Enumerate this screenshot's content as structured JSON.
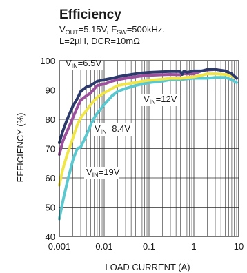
{
  "chart_data": {
    "type": "line",
    "title": "Efficiency",
    "subtitle_line1": {
      "v": "V",
      "v_sub": "OUT",
      "mid": "=5.15V, F",
      "f_sub": "SW",
      "end": "=500kHz."
    },
    "subtitle_line2": "L=2µH, DCR=10mΩ",
    "xlabel": "LOAD CURRENT (A)",
    "ylabel": "EFFICIENCY (%)",
    "xscale": "log",
    "xlim": [
      0.001,
      10
    ],
    "ylim": [
      40,
      100
    ],
    "xticks": [
      {
        "value": 0.001,
        "label": "0.001"
      },
      {
        "value": 0.01,
        "label": "0.01"
      },
      {
        "value": 0.1,
        "label": "0.1"
      },
      {
        "value": 1,
        "label": "1"
      },
      {
        "value": 10,
        "label": "10"
      }
    ],
    "yticks": [
      {
        "value": 40,
        "label": "40"
      },
      {
        "value": 50,
        "label": "50"
      },
      {
        "value": 60,
        "label": "60"
      },
      {
        "value": 70,
        "label": "70"
      },
      {
        "value": 80,
        "label": "80"
      },
      {
        "value": 90,
        "label": "90"
      },
      {
        "value": 100,
        "label": "100"
      }
    ],
    "grid": true,
    "series": [
      {
        "name": "VIN=6.5V",
        "label_main": "V",
        "label_sub": "IN",
        "label_end": "=6.5V",
        "color": "#2b3a6b",
        "x": [
          0.001,
          0.0012,
          0.0015,
          0.002,
          0.0025,
          0.003,
          0.004,
          0.005,
          0.007,
          0.01,
          0.015,
          0.02,
          0.03,
          0.05,
          0.07,
          0.1,
          0.2,
          0.3,
          0.5,
          0.55,
          0.6,
          0.7,
          1,
          1.5,
          2,
          3,
          5,
          7,
          9
        ],
        "y": [
          72,
          76,
          80,
          84.5,
          87,
          89.5,
          91,
          91.5,
          93,
          93.5,
          94,
          94.5,
          95,
          95.5,
          95.8,
          96,
          96.2,
          96.3,
          96.3,
          95.3,
          96.5,
          96,
          96.5,
          96.5,
          97,
          97,
          96.5,
          95.5,
          94
        ]
      },
      {
        "name": "VIN=8.4V",
        "label_main": "V",
        "label_sub": "IN",
        "label_end": "=8.4V",
        "color": "#9b4f9c",
        "x": [
          0.001,
          0.0012,
          0.0015,
          0.002,
          0.0025,
          0.003,
          0.004,
          0.005,
          0.007,
          0.01,
          0.015,
          0.02,
          0.03,
          0.05,
          0.07,
          0.1,
          0.2,
          0.3,
          0.5,
          0.6,
          0.7,
          1,
          1.5,
          2,
          3,
          5,
          7,
          9
        ],
        "y": [
          68,
          72.5,
          76,
          80.5,
          84,
          86.5,
          88,
          89,
          91.5,
          92,
          93,
          93.5,
          94,
          94.5,
          94.8,
          95,
          95.2,
          95.3,
          95.2,
          95.5,
          95.5,
          95.5,
          96.5,
          96.8,
          97,
          96.5,
          95.5,
          94
        ]
      },
      {
        "name": "VIN=12V",
        "label_main": "V",
        "label_sub": "IN",
        "label_end": "=12V",
        "color": "#f0e64a",
        "x": [
          0.001,
          0.0012,
          0.0015,
          0.002,
          0.0025,
          0.003,
          0.004,
          0.005,
          0.007,
          0.01,
          0.015,
          0.02,
          0.03,
          0.05,
          0.07,
          0.1,
          0.2,
          0.3,
          0.5,
          0.7,
          1,
          1.5,
          2,
          3,
          5,
          7,
          9
        ],
        "y": [
          57.5,
          63,
          68,
          73.5,
          78,
          80.5,
          83,
          85,
          87.5,
          89,
          90.5,
          91.5,
          92,
          92.5,
          93,
          93.3,
          93.7,
          94,
          94,
          94.3,
          94.5,
          95,
          95.5,
          95.5,
          95.3,
          94.8,
          94
        ]
      },
      {
        "name": "VIN=19V",
        "label_main": "V",
        "label_sub": "IN",
        "label_end": "=19V",
        "color": "#5bc8d0",
        "x": [
          0.001,
          0.0012,
          0.0015,
          0.002,
          0.0025,
          0.003,
          0.004,
          0.005,
          0.006,
          0.007,
          0.01,
          0.015,
          0.02,
          0.03,
          0.05,
          0.07,
          0.1,
          0.2,
          0.3,
          0.5,
          0.7,
          1,
          1.5,
          2,
          3,
          5,
          7,
          9
        ],
        "y": [
          46,
          52,
          58.5,
          66,
          70,
          70.5,
          74.5,
          78,
          80.5,
          82,
          85,
          88,
          89.5,
          90.5,
          91.5,
          92,
          92.5,
          93,
          93.5,
          93.5,
          93.8,
          94,
          94,
          94,
          94.3,
          94.3,
          93.5,
          92.5
        ]
      }
    ]
  }
}
